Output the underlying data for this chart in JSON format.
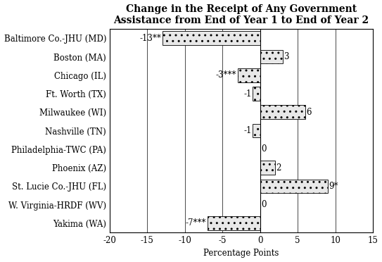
{
  "title": "Change in the Receipt of Any Government\nAssistance from End of Year 1 to End of Year 2",
  "categories": [
    "Baltimore Co.-JHU (MD)",
    "Boston (MA)",
    "Chicago (IL)",
    "Ft. Worth (TX)",
    "Milwaukee (WI)",
    "Nashville (TN)",
    "Philadelphia-TWC (PA)",
    "Phoenix (AZ)",
    "St. Lucie Co.-JHU (FL)",
    "W. Virginia-HRDF (WV)",
    "Yakima (WA)"
  ],
  "values": [
    -13,
    3,
    -3,
    -1,
    6,
    -1,
    0,
    2,
    9,
    0,
    -7
  ],
  "labels": [
    "-13**",
    "3",
    "-3***",
    "-1",
    "6",
    "-1",
    "0",
    "2",
    "9*",
    "0",
    "-7***"
  ],
  "xlim": [
    -20,
    15
  ],
  "xticks": [
    -20,
    -15,
    -10,
    -5,
    0,
    5,
    10,
    15
  ],
  "xlabel": "Percentage Points",
  "bar_color": "#e8e8e8",
  "title_fontsize": 10,
  "label_fontsize": 8.5,
  "tick_fontsize": 8.5
}
